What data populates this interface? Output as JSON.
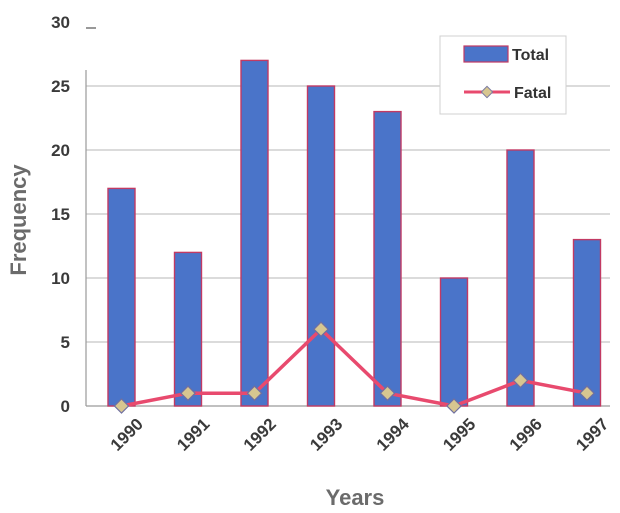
{
  "chart_data": {
    "type": "bar",
    "categories": [
      "1990",
      "1991",
      "1992",
      "1993",
      "1994",
      "1995",
      "1996",
      "1997"
    ],
    "series": [
      {
        "name": "Total",
        "type": "bar",
        "values": [
          17,
          12,
          27,
          25,
          23,
          10,
          20,
          13
        ]
      },
      {
        "name": "Fatal",
        "type": "line",
        "values": [
          0,
          1,
          1,
          6,
          1,
          0,
          2,
          1
        ]
      }
    ],
    "xlabel": "Years",
    "ylabel": "Frequency",
    "ylim": [
      0,
      30
    ],
    "yticks": [
      0,
      5,
      10,
      15,
      20,
      25,
      30
    ],
    "grid": "horizontal",
    "legend_position": "top-right",
    "colors": {
      "bar": "#4a74c9",
      "bar_edge": "#c23a63",
      "line": "#e84a6e",
      "marker": "#d7c690",
      "grid": "#b7b7b7"
    }
  }
}
